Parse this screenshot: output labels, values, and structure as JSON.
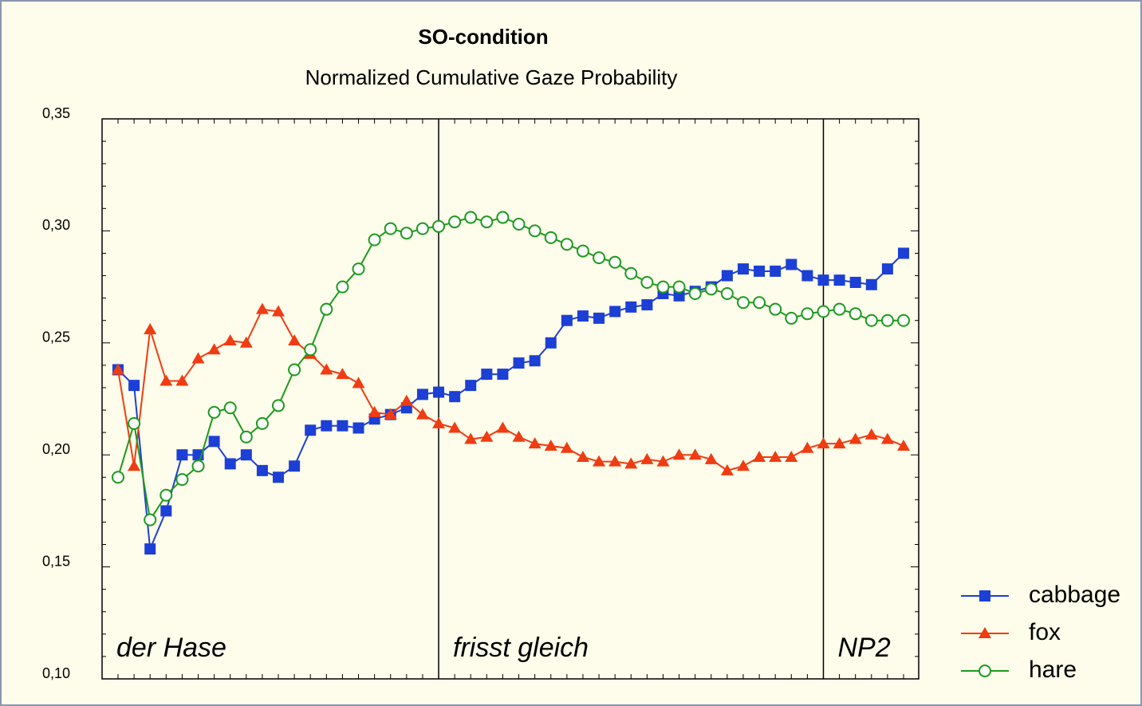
{
  "chart_data": {
    "type": "line",
    "title": "SO-condition",
    "subtitle": "Normalized Cumulative Gaze Probability",
    "categories": [
      null,
      null,
      null,
      null,
      null,
      null,
      null,
      null,
      null,
      null,
      null,
      null,
      null,
      null,
      null,
      null,
      null,
      null,
      null,
      null,
      null,
      null,
      null,
      null,
      null,
      null,
      null,
      null,
      null,
      null,
      null,
      null,
      null,
      null,
      null,
      null,
      null,
      null,
      null,
      null,
      null,
      null,
      null,
      null,
      null,
      null,
      null,
      null,
      null,
      null
    ],
    "ylim": [
      0.1,
      0.35
    ],
    "yticks": [
      {
        "value": 0.1,
        "label": "0,10"
      },
      {
        "value": 0.15,
        "label": "0,15"
      },
      {
        "value": 0.2,
        "label": "0,20"
      },
      {
        "value": 0.25,
        "label": "0,25"
      },
      {
        "value": 0.3,
        "label": "0,30"
      },
      {
        "value": 0.35,
        "label": "0,35"
      }
    ],
    "grid": false,
    "legend": "lower right",
    "regions": [
      {
        "label": "der Hase",
        "start": 0
      },
      {
        "label": "frisst gleich",
        "start": 20
      },
      {
        "label": "NP2",
        "start": 44
      }
    ],
    "series": [
      {
        "name": "cabbage",
        "color": "#1c3fd6",
        "marker": "square",
        "values": [
          0.238,
          0.231,
          0.158,
          0.175,
          0.2,
          0.2,
          0.206,
          0.196,
          0.2,
          0.193,
          0.19,
          0.195,
          0.211,
          0.213,
          0.213,
          0.212,
          0.216,
          0.218,
          0.221,
          0.227,
          0.228,
          0.226,
          0.231,
          0.236,
          0.236,
          0.241,
          0.242,
          0.25,
          0.26,
          0.262,
          0.261,
          0.264,
          0.266,
          0.267,
          0.272,
          0.271,
          0.273,
          0.275,
          0.28,
          0.283,
          0.282,
          0.282,
          0.285,
          0.28,
          0.278,
          0.278,
          0.277,
          0.276,
          0.283,
          0.29
        ]
      },
      {
        "name": "fox",
        "color": "#f03c12",
        "marker": "triangle",
        "values": [
          0.238,
          0.195,
          0.256,
          0.233,
          0.233,
          0.243,
          0.247,
          0.251,
          0.25,
          0.265,
          0.264,
          0.251,
          0.245,
          0.238,
          0.236,
          0.232,
          0.219,
          0.218,
          0.224,
          0.218,
          0.214,
          0.212,
          0.207,
          0.208,
          0.212,
          0.208,
          0.205,
          0.204,
          0.203,
          0.199,
          0.197,
          0.197,
          0.196,
          0.198,
          0.197,
          0.2,
          0.2,
          0.198,
          0.193,
          0.195,
          0.199,
          0.199,
          0.199,
          0.203,
          0.205,
          0.205,
          0.207,
          0.209,
          0.207,
          0.204
        ]
      },
      {
        "name": "hare",
        "color": "#1c9a1c",
        "marker": "circle",
        "values": [
          0.19,
          0.214,
          0.171,
          0.182,
          0.189,
          0.195,
          0.219,
          0.221,
          0.208,
          0.214,
          0.222,
          0.238,
          0.247,
          0.265,
          0.275,
          0.283,
          0.296,
          0.301,
          0.299,
          0.301,
          0.302,
          0.304,
          0.306,
          0.304,
          0.306,
          0.303,
          0.3,
          0.297,
          0.294,
          0.291,
          0.288,
          0.286,
          0.281,
          0.277,
          0.275,
          0.275,
          0.272,
          0.274,
          0.272,
          0.268,
          0.268,
          0.265,
          0.261,
          0.263,
          0.264,
          0.265,
          0.263,
          0.26,
          0.26,
          0.26
        ]
      }
    ]
  }
}
